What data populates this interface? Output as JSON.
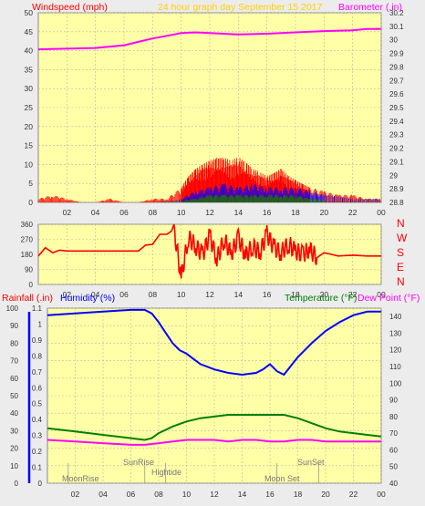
{
  "header": {
    "windspeed_label": "Windspeed (mph)",
    "title": "24 hour graph day   September 15 2017",
    "barometer_label": "Barometer (.in)"
  },
  "colors": {
    "plot_bg": "#ffffa8",
    "grid": "#b9b9a0",
    "wind": "#ff0000",
    "wind_dir": "#ff0000",
    "barometer": "#ff00ff",
    "humidity": "#0000ff",
    "temperature": "#008000",
    "dewpoint": "#ff00ff",
    "gust_blue": "#0000ff",
    "gust_green": "#008000"
  },
  "bottom_labels": {
    "rainfall": "Rainfall (.in)",
    "humidity": "Humidity (%)",
    "temperature": "Temperature (°F)",
    "dewpoint": "Dew Point (°F)"
  },
  "direction_labels": [
    "N",
    "W",
    "S",
    "E",
    "N"
  ],
  "event_labels": {
    "moonrise": "MoonRise",
    "sunrise": "SunRise",
    "hightide": "Hightide",
    "moonset": "Moon Set",
    "sunset": "SunSet"
  },
  "chart_data": [
    {
      "id": "wind_baro",
      "type": "line",
      "title": "24 hour graph day   September 15 2017",
      "x_ticks": [
        "02",
        "04",
        "06",
        "08",
        "10",
        "12",
        "14",
        "16",
        "18",
        "20",
        "22",
        "00"
      ],
      "xlim": [
        0,
        24
      ],
      "y_left": {
        "label": "Windspeed (mph)",
        "ylim": [
          0,
          50
        ],
        "ticks": [
          0,
          5,
          10,
          15,
          20,
          25,
          30,
          35,
          40,
          45,
          50
        ]
      },
      "y_right": {
        "label": "Barometer (.in)",
        "ylim": [
          28.8,
          30.2
        ],
        "ticks": [
          "28.8",
          "28.9",
          "29",
          "29.1",
          "29.2",
          "29.3",
          "29.4",
          "29.5",
          "29.6",
          "29.7",
          "29.8",
          "29.9",
          "30",
          "30.1",
          "30.2"
        ]
      },
      "series": [
        {
          "name": "Barometer",
          "axis": "right",
          "x": [
            0,
            2,
            4,
            6,
            7,
            8,
            9,
            10,
            11,
            12,
            14,
            16,
            18,
            20,
            22,
            23,
            24
          ],
          "values": [
            29.93,
            29.935,
            29.94,
            29.96,
            29.985,
            30.01,
            30.03,
            30.05,
            30.055,
            30.05,
            30.04,
            30.045,
            30.055,
            30.065,
            30.07,
            30.08,
            30.08
          ]
        },
        {
          "name": "Wind gust",
          "axis": "left",
          "x": [
            0,
            1,
            2,
            3,
            4,
            5,
            6,
            7,
            8,
            9,
            10,
            10.5,
            11,
            11.5,
            12,
            12.5,
            13,
            13.5,
            14,
            14.5,
            15,
            15.5,
            16,
            16.5,
            17,
            17.5,
            18,
            18.5,
            19,
            20,
            21,
            22,
            23,
            24
          ],
          "values": [
            1,
            2,
            1,
            0,
            0,
            1,
            0,
            0,
            1,
            1,
            4,
            7,
            9,
            10,
            11,
            12,
            12,
            11,
            12,
            11,
            9,
            8,
            7,
            8,
            9,
            7,
            6,
            5,
            4,
            3,
            2,
            2,
            1,
            1
          ]
        },
        {
          "name": "Wind speed",
          "axis": "left",
          "x": [
            0,
            4,
            8,
            10,
            11,
            12,
            13,
            14,
            15,
            16,
            17,
            18,
            19,
            20,
            22,
            24
          ],
          "values": [
            0,
            0,
            0,
            1,
            3,
            4,
            5,
            4,
            5,
            4,
            4,
            4,
            3,
            2,
            1,
            1
          ]
        },
        {
          "name": "Wind avg",
          "axis": "left",
          "x": [
            0,
            8,
            10,
            11,
            12,
            13,
            14,
            15,
            16,
            17,
            18,
            19,
            20,
            24
          ],
          "values": [
            0,
            0,
            0.5,
            1,
            2,
            2,
            2,
            2,
            2,
            2,
            2,
            1,
            0.5,
            0.5
          ]
        }
      ]
    },
    {
      "id": "wind_direction",
      "type": "line",
      "ylim": [
        0,
        360
      ],
      "y_ticks": [
        0,
        90,
        180,
        270,
        360
      ],
      "x_ticks": [
        "02",
        "04",
        "06",
        "08",
        "10",
        "12",
        "14",
        "16",
        "18",
        "20",
        "22",
        "00"
      ],
      "series": [
        {
          "name": "Wind direction",
          "x": [
            0,
            0.5,
            1,
            1.5,
            2,
            3,
            4,
            5,
            6,
            7,
            7.5,
            8,
            8.5,
            9,
            9.5,
            10,
            10.5,
            11,
            11.5,
            12,
            12.5,
            13,
            13.5,
            14,
            14.5,
            15,
            15.5,
            16,
            16.5,
            17,
            17.5,
            18,
            18.5,
            19,
            19.5,
            20,
            21,
            22,
            23,
            24
          ],
          "values": [
            170,
            220,
            190,
            205,
            200,
            200,
            200,
            200,
            200,
            200,
            235,
            240,
            300,
            300,
            330,
            40,
            280,
            230,
            180,
            290,
            150,
            270,
            180,
            280,
            170,
            230,
            190,
            300,
            220,
            190,
            240,
            200,
            180,
            210,
            160,
            190,
            170,
            175,
            170,
            170
          ]
        }
      ]
    },
    {
      "id": "temp_hum",
      "type": "line",
      "x_ticks": [
        "02",
        "04",
        "06",
        "08",
        "10",
        "12",
        "14",
        "16",
        "18",
        "20",
        "22",
        "00"
      ],
      "y_left_outer": {
        "label": "Rainfall (.in)",
        "ylim": [
          0,
          1.1
        ],
        "ticks": [
          "0",
          "0.1",
          "0.2",
          "0.3",
          "0.4",
          "0.5",
          "0.6",
          "0.7",
          "0.8",
          "0.9",
          "1",
          "1.1"
        ]
      },
      "y_left_inner": {
        "label": "Humidity (%)",
        "ylim": [
          0,
          100
        ],
        "ticks": [
          0,
          10,
          20,
          30,
          40,
          50,
          60,
          70,
          80,
          90,
          100
        ]
      },
      "y_right": {
        "label": "Temperature (°F)",
        "ylim": [
          40,
          145
        ],
        "ticks": [
          40,
          50,
          60,
          70,
          80,
          90,
          100,
          110,
          120,
          130,
          140
        ]
      },
      "series": [
        {
          "name": "Humidity",
          "axis": "humidity",
          "x": [
            0,
            2,
            4,
            6,
            7,
            7.5,
            8,
            8.5,
            9,
            9.5,
            10,
            10.5,
            11,
            12,
            13,
            14,
            15,
            15.5,
            16,
            16.5,
            17,
            17.5,
            18,
            19,
            20,
            21,
            22,
            23,
            24
          ],
          "values": [
            96,
            97,
            98,
            99,
            99,
            97,
            92,
            86,
            80,
            76,
            74,
            71,
            68,
            65,
            63,
            62,
            63,
            65,
            68,
            64,
            62,
            67,
            72,
            80,
            87,
            92,
            96,
            98,
            98
          ]
        },
        {
          "name": "Temperature",
          "axis": "right",
          "x": [
            0,
            2,
            4,
            6,
            7,
            7.5,
            8,
            9,
            10,
            11,
            12,
            13,
            14,
            15,
            16,
            17,
            18,
            19,
            20,
            21,
            22,
            23,
            24
          ],
          "values": [
            73,
            71,
            69,
            67,
            66,
            67,
            70,
            74,
            77,
            79,
            80,
            81,
            81,
            81,
            81,
            81,
            79,
            76,
            73,
            71,
            70,
            69,
            68
          ]
        },
        {
          "name": "Dew Point",
          "axis": "right",
          "x": [
            0,
            2,
            4,
            6,
            7,
            8,
            9,
            10,
            11,
            12,
            13,
            14,
            15,
            16,
            17,
            18,
            19,
            20,
            21,
            22,
            23,
            24
          ],
          "values": [
            66,
            65,
            64,
            63,
            63,
            64,
            65,
            66,
            66,
            66,
            65,
            66,
            66,
            65,
            65,
            66,
            66,
            65,
            65,
            65,
            65,
            65
          ]
        }
      ],
      "events": [
        {
          "label": "MoonRise",
          "x": 1.5
        },
        {
          "label": "SunRise",
          "x": 7
        },
        {
          "label": "Hightide",
          "x": 8.5
        },
        {
          "label": "Moon Set",
          "x": 16.5
        },
        {
          "label": "SunSet",
          "x": 19.5
        }
      ]
    }
  ]
}
